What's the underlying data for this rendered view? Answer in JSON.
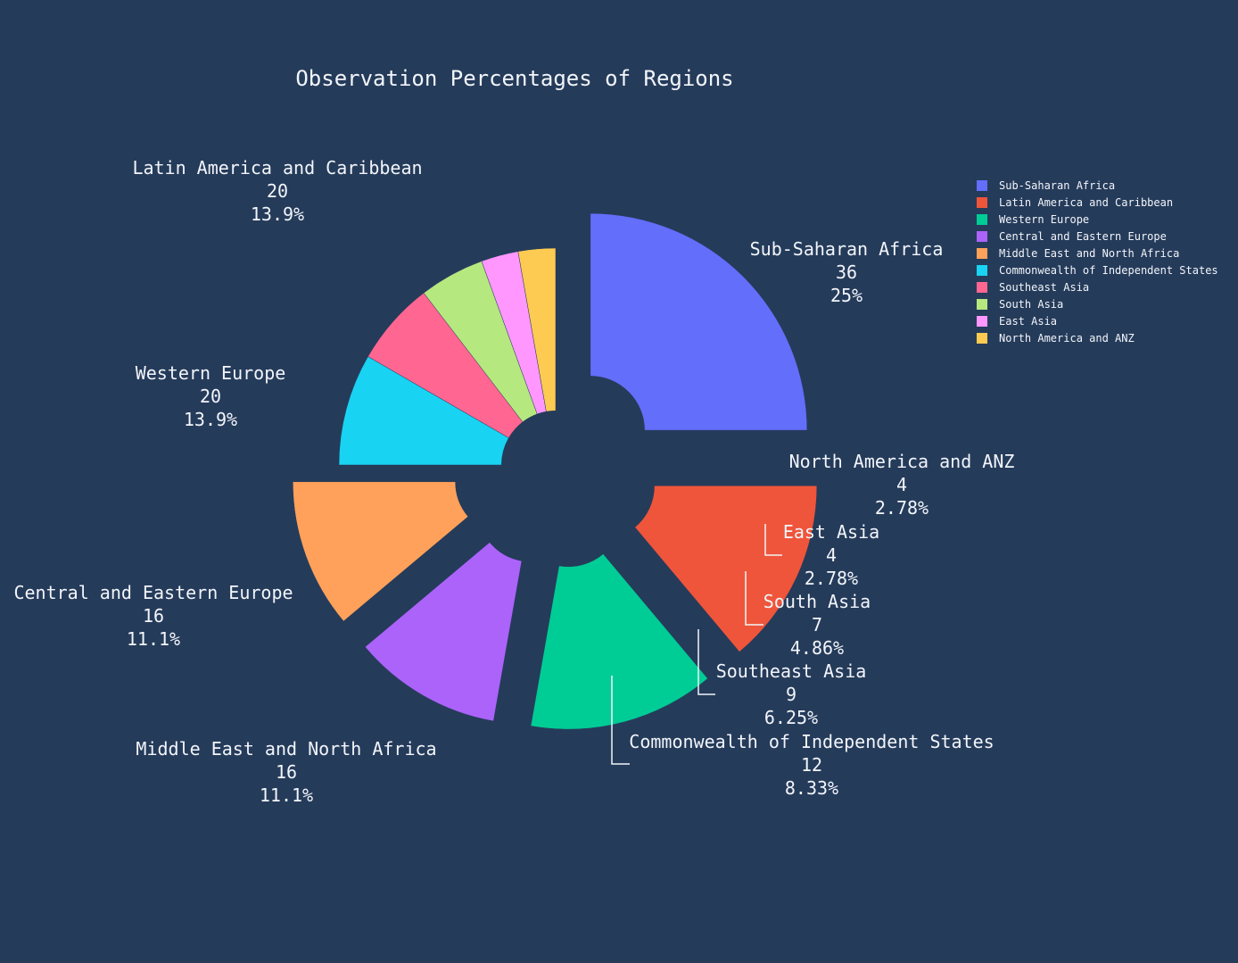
{
  "chart_data": {
    "type": "pie",
    "title": "Observation Percentages of Regions",
    "hole": 0.25,
    "legend_position": "top-right",
    "slices": [
      {
        "label": "Sub-Saharan Africa",
        "value": 36,
        "percent": "25%",
        "color": "#636efa",
        "pulled": true
      },
      {
        "label": "Latin America and Caribbean",
        "value": 20,
        "percent": "13.9%",
        "color": "#ef553b",
        "pulled": true
      },
      {
        "label": "Western Europe",
        "value": 20,
        "percent": "13.9%",
        "color": "#00cc96",
        "pulled": true
      },
      {
        "label": "Central and Eastern Europe",
        "value": 16,
        "percent": "11.1%",
        "color": "#ab63fa",
        "pulled": true
      },
      {
        "label": "Middle East and North Africa",
        "value": 16,
        "percent": "11.1%",
        "color": "#ffa15a",
        "pulled": true
      },
      {
        "label": "Commonwealth of Independent States",
        "value": 12,
        "percent": "8.33%",
        "color": "#19d3f3",
        "pulled": false
      },
      {
        "label": "Southeast Asia",
        "value": 9,
        "percent": "6.25%",
        "color": "#ff6692",
        "pulled": false
      },
      {
        "label": "South Asia",
        "value": 7,
        "percent": "4.86%",
        "color": "#b6e880",
        "pulled": false
      },
      {
        "label": "East Asia",
        "value": 4,
        "percent": "2.78%",
        "color": "#ff97ff",
        "pulled": false
      },
      {
        "label": "North America and ANZ",
        "value": 4,
        "percent": "2.78%",
        "color": "#fecb52",
        "pulled": false
      }
    ]
  }
}
